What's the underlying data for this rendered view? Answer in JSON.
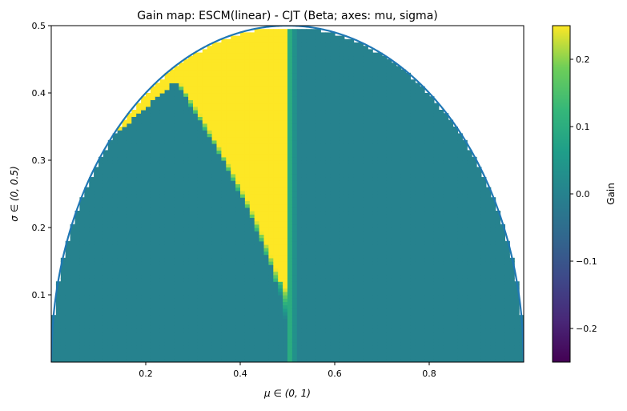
{
  "chart_data": {
    "type": "heatmap",
    "title": "Gain map: ESCM(linear) - CJT (Beta; axes: mu, sigma)",
    "xlabel": "μ ∈ (0, 1)",
    "ylabel": "σ ∈ (0, 0.5)",
    "xlim": [
      0,
      1
    ],
    "ylim": [
      0,
      0.5
    ],
    "x_ticks": [
      0.2,
      0.4,
      0.6,
      0.8
    ],
    "x_tick_labels": [
      "0.2",
      "0.4",
      "0.6",
      "0.8"
    ],
    "y_ticks": [
      0.1,
      0.2,
      0.3,
      0.4,
      0.5
    ],
    "y_tick_labels": [
      "0.1",
      "0.2",
      "0.3",
      "0.4",
      "0.5"
    ],
    "grid": false,
    "colormap": "viridis",
    "color_limits": [
      -0.25,
      0.25
    ],
    "colorbar": {
      "label": "Gain",
      "ticks": [
        0.2,
        0.1,
        0.0,
        -0.1,
        -0.2
      ],
      "tick_labels": [
        "0.2",
        "0.1",
        "0.0",
        "−0.1",
        "−0.2"
      ]
    },
    "boundary_curve": {
      "description": "feasible region boundary sigma = sqrt(mu(1-mu))",
      "color": "#1f77b4"
    },
    "regions": [
      {
        "name": "positive gain region",
        "gain": 0.25,
        "color": "#fde725"
      },
      {
        "name": "zero gain region",
        "gain": 0.0,
        "color": "#21918c"
      }
    ],
    "grid_resolution": [
      100,
      100
    ]
  }
}
